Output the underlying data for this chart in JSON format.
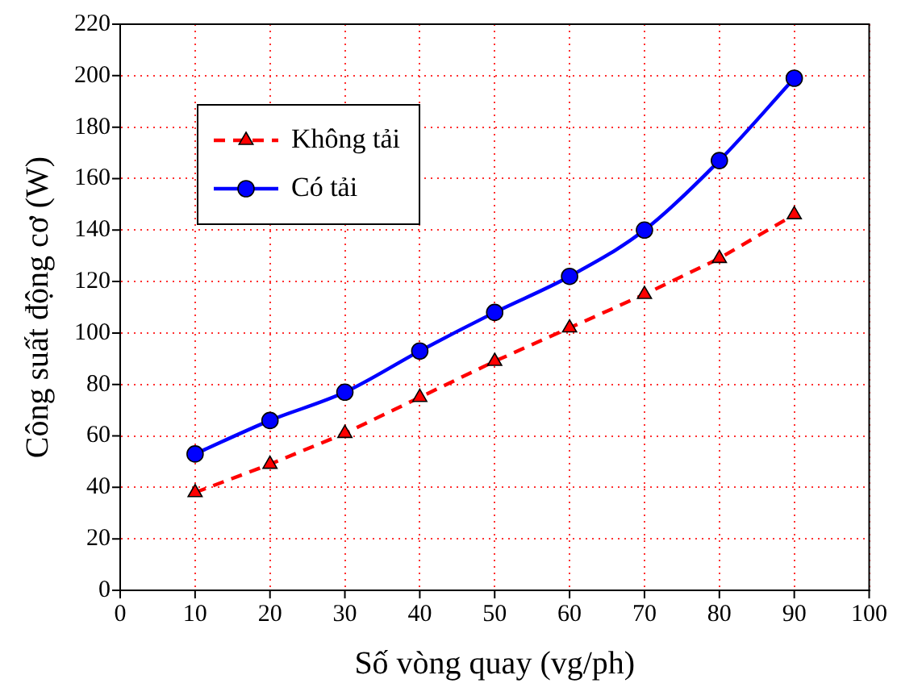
{
  "chart_data": {
    "type": "line",
    "xlabel": "Số vòng quay (vg/ph)",
    "ylabel": "Công suất động cơ (W)",
    "x": [
      10,
      20,
      30,
      40,
      50,
      60,
      70,
      80,
      90
    ],
    "series": [
      {
        "name": "Không tải",
        "color": "#ff0000",
        "marker": "triangle",
        "line_style": "dashed",
        "values": [
          38,
          49,
          61,
          75,
          89,
          102,
          115,
          129,
          146
        ]
      },
      {
        "name": "Có tải",
        "color": "#0000ff",
        "marker": "circle",
        "line_style": "solid",
        "values": [
          53,
          66,
          77,
          93,
          108,
          122,
          140,
          167,
          199
        ]
      }
    ],
    "xlim": [
      0,
      100
    ],
    "xticks": [
      0,
      10,
      20,
      30,
      40,
      50,
      60,
      70,
      80,
      90,
      100
    ],
    "ylim": [
      0,
      220
    ],
    "yticks": [
      0,
      20,
      40,
      60,
      80,
      100,
      120,
      140,
      160,
      180,
      200,
      220
    ],
    "grid": true,
    "legend": "top left"
  }
}
